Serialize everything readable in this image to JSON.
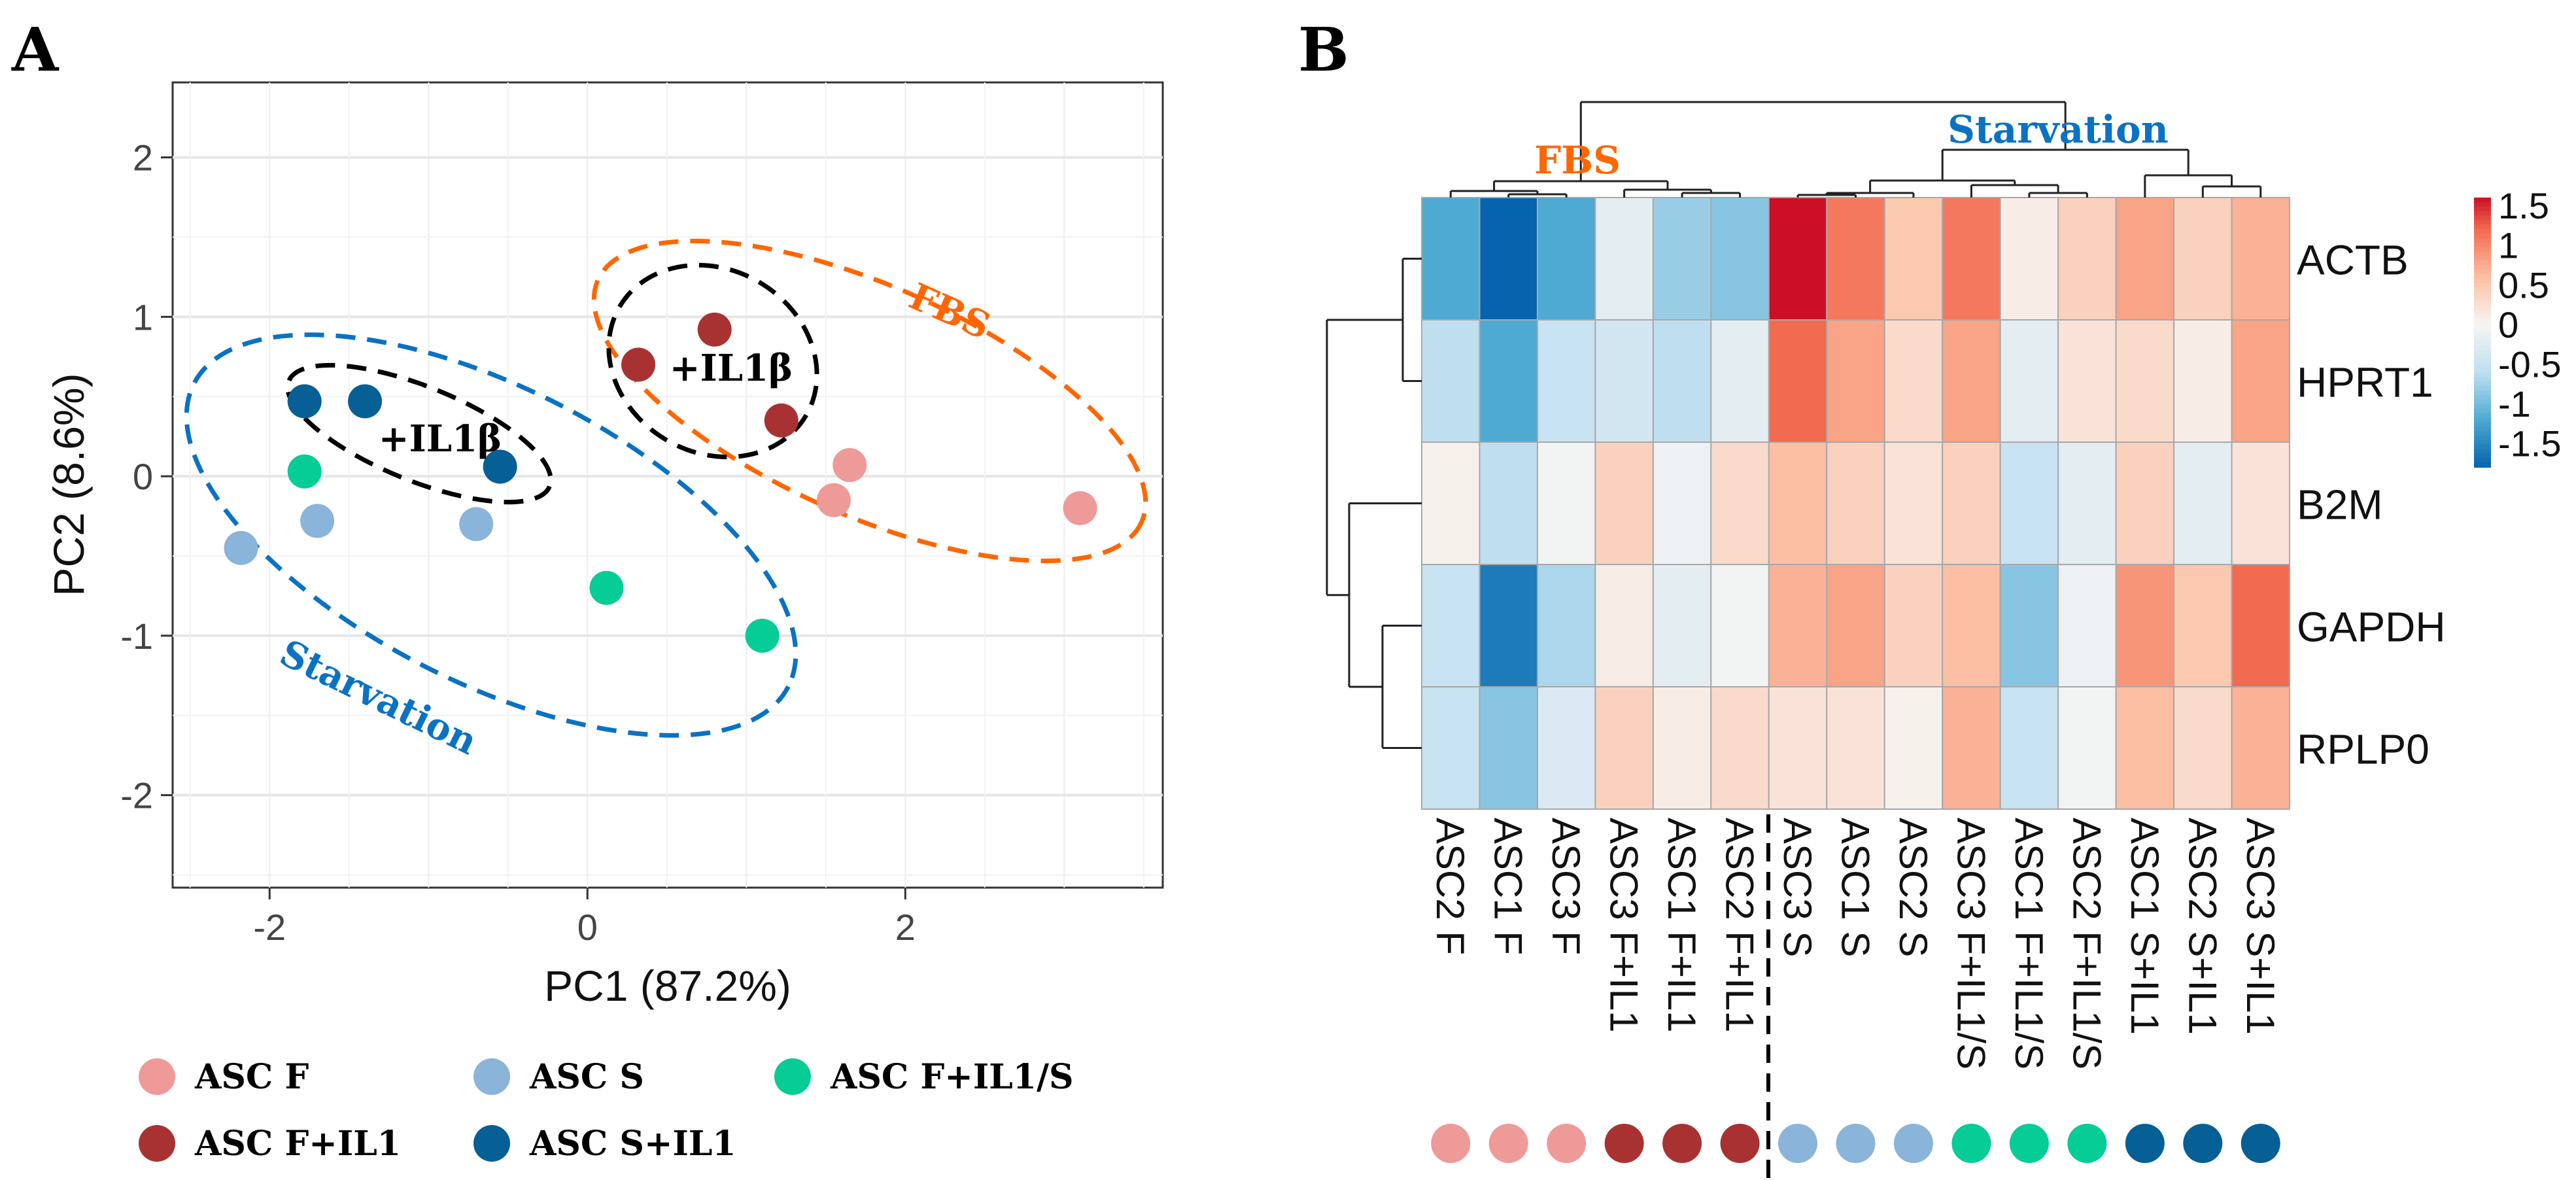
{
  "panels": {
    "a_label": "A",
    "b_label": "B"
  },
  "colors": {
    "ASC F": "#ee9a99",
    "ASC F+IL1": "#a83232",
    "ASC S": "#8ab4d9",
    "ASC S+IL1": "#065f95",
    "ASC F+IL1/S": "#06cc95",
    "fbs": "#ff6600",
    "starvation": "#0a72c4"
  },
  "annotations": {
    "fbs": "FBS",
    "starvation": "Starvation",
    "il1b_left": "+IL1β",
    "il1b_right": "+IL1β"
  },
  "legend": [
    {
      "label": "ASC F",
      "group": "ASC F"
    },
    {
      "label": "ASC S",
      "group": "ASC S"
    },
    {
      "label": "ASC F+IL1/S",
      "group": "ASC F+IL1/S"
    },
    {
      "label": "ASC F+IL1",
      "group": "ASC F+IL1"
    },
    {
      "label": "ASC S+IL1",
      "group": "ASC S+IL1"
    }
  ],
  "chart_data": [
    {
      "type": "scatter",
      "title": "",
      "xlabel": "PC1 (87.2%)",
      "ylabel": "PC2 (8.6%)",
      "xlim": [
        -2.61,
        3.62
      ],
      "ylim": [
        -2.58,
        2.47
      ],
      "xticks": [
        -2,
        0,
        2
      ],
      "yticks": [
        -2,
        -1,
        0,
        1,
        2
      ],
      "xtick_labels": [
        "-2",
        "0",
        "2"
      ],
      "ytick_labels": [
        "-2",
        "-1",
        "0",
        "1",
        "2"
      ],
      "grid": true,
      "series": [
        {
          "name": "ASC F",
          "points": [
            [
              1.65,
              0.07
            ],
            [
              1.55,
              -0.15
            ],
            [
              3.1,
              -0.2
            ]
          ]
        },
        {
          "name": "ASC F+IL1",
          "points": [
            [
              0.32,
              0.7
            ],
            [
              0.8,
              0.92
            ],
            [
              1.22,
              0.35
            ]
          ]
        },
        {
          "name": "ASC S",
          "points": [
            [
              -2.18,
              -0.45
            ],
            [
              -1.7,
              -0.28
            ],
            [
              -0.7,
              -0.3
            ]
          ]
        },
        {
          "name": "ASC F+IL1/S",
          "points": [
            [
              -1.78,
              0.03
            ],
            [
              0.12,
              -0.7
            ],
            [
              1.1,
              -1.0
            ]
          ]
        },
        {
          "name": "ASC S+IL1",
          "points": [
            [
              -1.78,
              0.47
            ],
            [
              -1.4,
              0.47
            ],
            [
              -0.55,
              0.06
            ]
          ]
        }
      ],
      "legend_position": "bottom"
    },
    {
      "type": "heatmap",
      "rows": [
        "ACTB",
        "HPRT1",
        "B2M",
        "GAPDH",
        "RPLP0"
      ],
      "columns": [
        "ASC2 F",
        "ASC1 F",
        "ASC3 F",
        "ASC3 F+IL1",
        "ASC1 F+IL1",
        "ASC2 F+IL1",
        "ASC3 S",
        "ASC1 S",
        "ASC2 S",
        "ASC3 F+IL1/S",
        "ASC1 F+IL1/S",
        "ASC2 F+IL1/S",
        "ASC1 S+IL1",
        "ASC2 S+IL1",
        "ASC3 S+IL1"
      ],
      "column_groups": [
        "ASC F",
        "ASC F",
        "ASC F",
        "ASC F+IL1",
        "ASC F+IL1",
        "ASC F+IL1",
        "ASC S",
        "ASC S",
        "ASC S",
        "ASC F+IL1/S",
        "ASC F+IL1/S",
        "ASC F+IL1/S",
        "ASC S+IL1",
        "ASC S+IL1",
        "ASC S+IL1"
      ],
      "values": [
        [
          -1.2,
          -1.8,
          -1.2,
          -0.2,
          -0.8,
          -0.9,
          1.6,
          1.1,
          0.5,
          1.1,
          0.1,
          0.4,
          0.8,
          0.4,
          0.7
        ],
        [
          -0.6,
          -1.2,
          -0.5,
          -0.4,
          -0.6,
          -0.2,
          1.2,
          0.8,
          0.3,
          0.8,
          -0.2,
          0.2,
          0.3,
          0.1,
          0.8
        ],
        [
          0.05,
          -0.6,
          -0.05,
          0.4,
          -0.1,
          0.3,
          0.6,
          0.4,
          0.2,
          0.4,
          -0.5,
          -0.2,
          0.4,
          -0.2,
          0.2
        ],
        [
          -0.5,
          -1.6,
          -0.7,
          0.1,
          -0.2,
          -0.05,
          0.7,
          0.8,
          0.4,
          0.6,
          -0.9,
          -0.1,
          0.9,
          0.5,
          1.2
        ],
        [
          -0.5,
          -0.9,
          -0.3,
          0.4,
          0.1,
          0.3,
          0.2,
          0.2,
          0.05,
          0.7,
          -0.5,
          -0.05,
          0.6,
          0.3,
          0.7
        ]
      ],
      "colorbar": {
        "range": [
          -1.8,
          1.6
        ],
        "ticks": [
          1.5,
          1,
          0.5,
          0,
          -0.5,
          -1,
          -1.5
        ],
        "tick_labels": [
          "1.5",
          "1",
          "0.5",
          "0",
          "-0.5",
          "-1",
          "-1.5"
        ]
      },
      "cluster_labels": [
        "FBS",
        "Starvation"
      ]
    }
  ]
}
